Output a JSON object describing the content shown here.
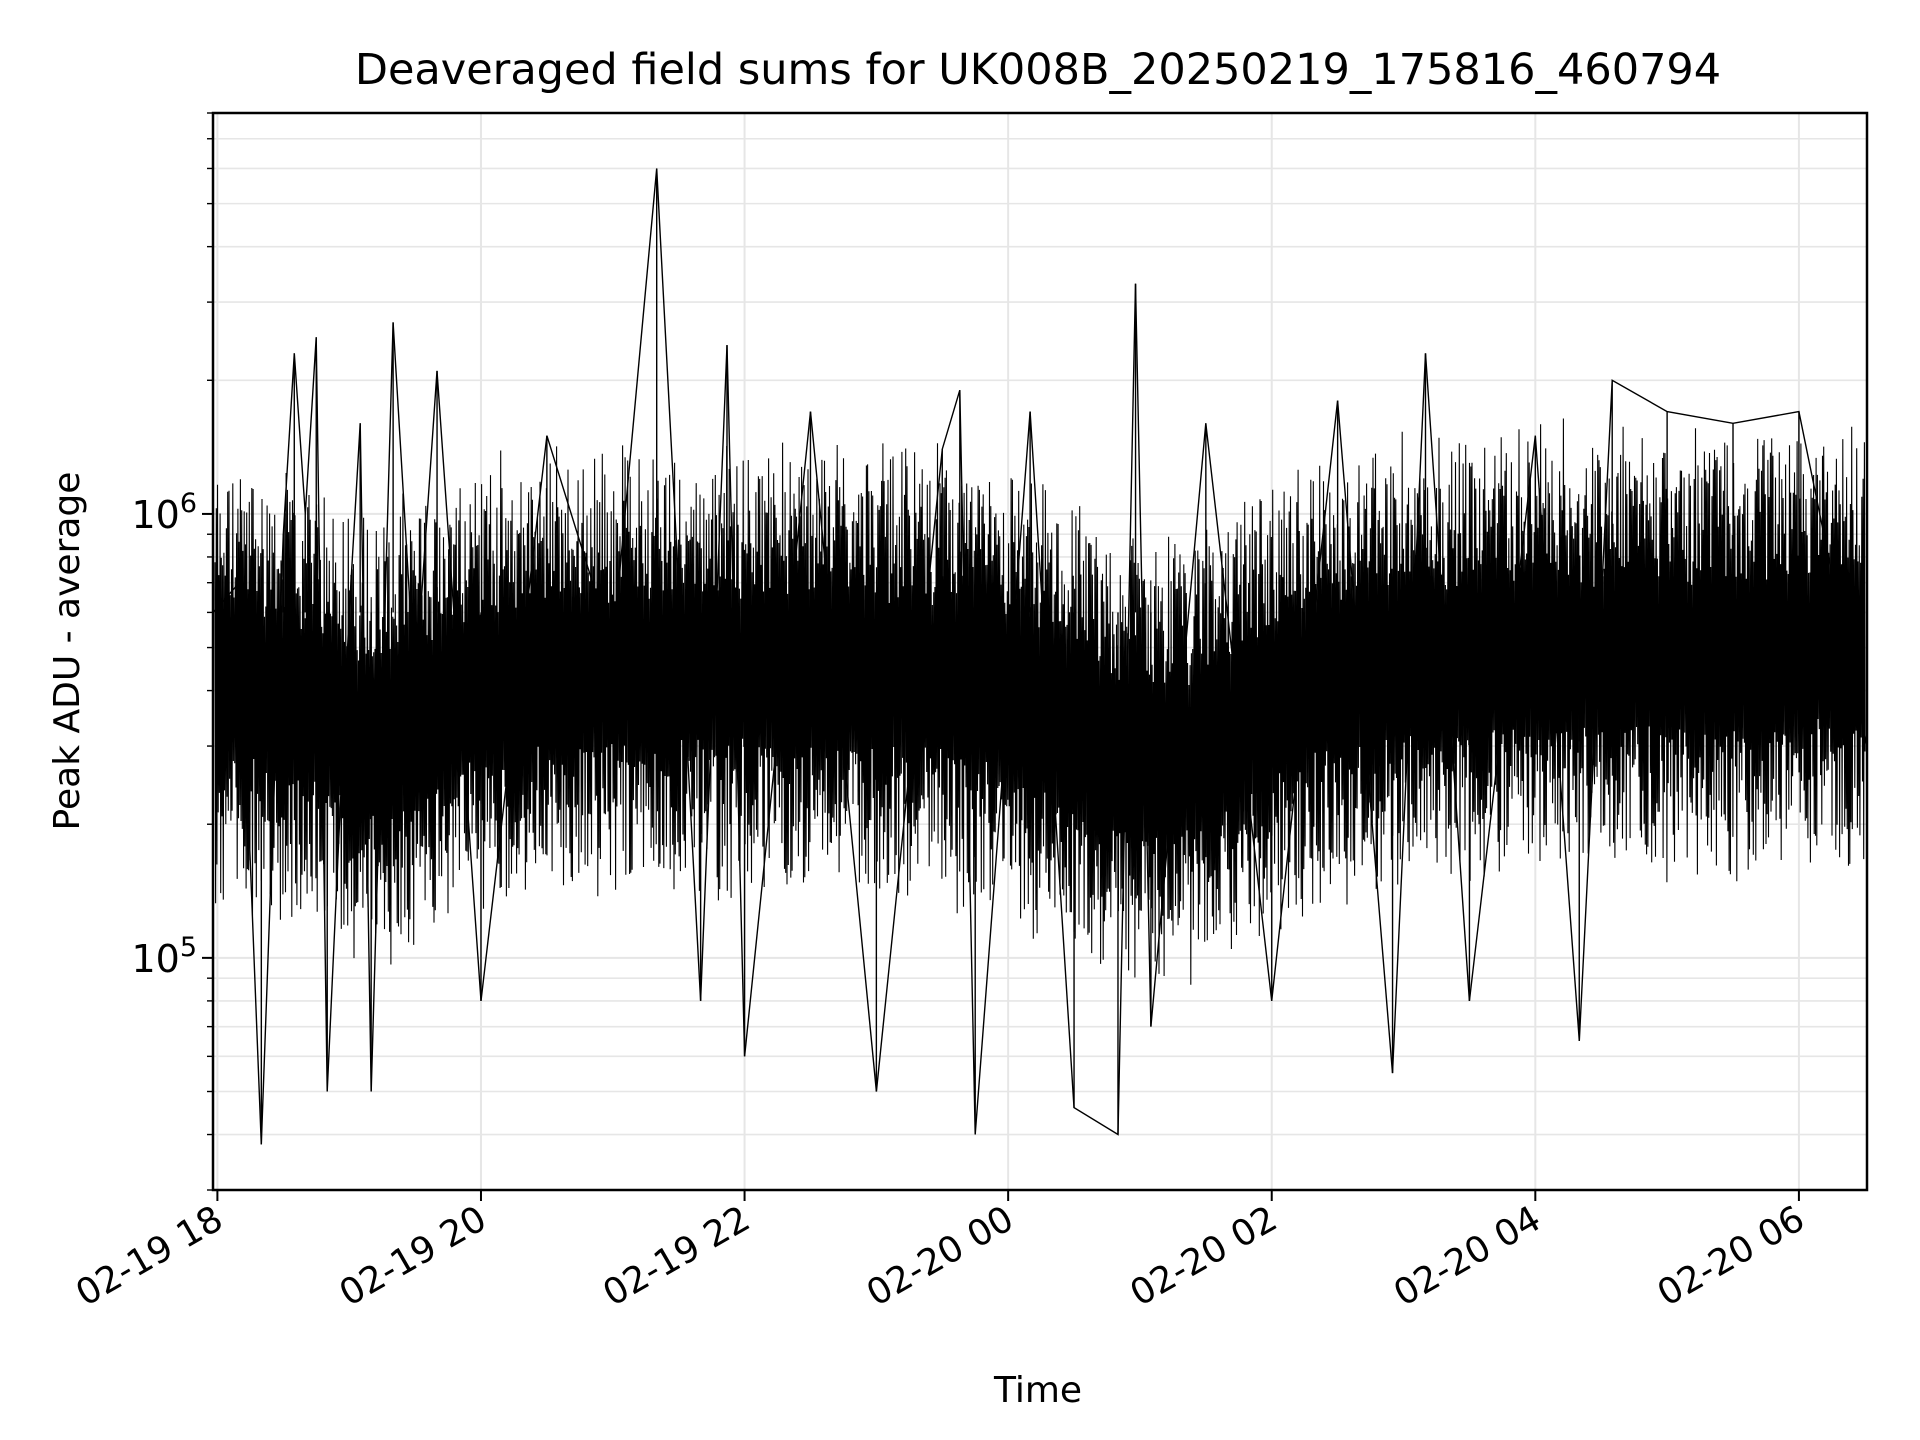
{
  "chart_data": {
    "type": "line",
    "title": "Deaveraged field sums for UK008B_20250219_175816_460794",
    "xlabel": "Time",
    "ylabel": "Peak ADU - average",
    "yscale": "log",
    "grid": true,
    "line_color": "#000000",
    "grid_color": "#e6e6e6",
    "x_ticks": [
      "02-19 18",
      "02-19 20",
      "02-19 22",
      "02-20 00",
      "02-20 02",
      "02-20 04",
      "02-20 06"
    ],
    "x_tick_times": [
      "2025-02-19 18:00",
      "2025-02-19 20:00",
      "2025-02-19 22:00",
      "2025-02-20 00:00",
      "2025-02-20 02:00",
      "2025-02-20 04:00",
      "2025-02-20 06:00"
    ],
    "xlim": [
      "2025-02-19 17:58",
      "2025-02-20 06:31"
    ],
    "y_ticks": [
      {
        "base": "10",
        "exp": "5",
        "value": 100000
      },
      {
        "base": "10",
        "exp": "6",
        "value": 1000000
      }
    ],
    "ylim": [
      30000,
      8000000
    ],
    "series": [
      {
        "x": [
          "2025-02-19 17:58",
          "2025-02-19 18:10",
          "2025-02-19 18:20",
          "2025-02-19 18:30",
          "2025-02-19 18:35",
          "2025-02-19 18:40",
          "2025-02-19 18:45",
          "2025-02-19 18:50",
          "2025-02-19 19:00",
          "2025-02-19 19:05",
          "2025-02-19 19:10",
          "2025-02-19 19:20",
          "2025-02-19 19:30",
          "2025-02-19 19:40",
          "2025-02-19 20:00",
          "2025-02-19 20:30",
          "2025-02-19 21:00",
          "2025-02-19 21:20",
          "2025-02-19 21:40",
          "2025-02-19 21:52",
          "2025-02-19 22:00",
          "2025-02-19 22:30",
          "2025-02-19 23:00",
          "2025-02-19 23:30",
          "2025-02-19 23:38",
          "2025-02-19 23:45",
          "2025-02-20 00:10",
          "2025-02-20 00:30",
          "2025-02-20 00:50",
          "2025-02-20 00:58",
          "2025-02-20 01:05",
          "2025-02-20 01:30",
          "2025-02-20 02:00",
          "2025-02-20 02:30",
          "2025-02-20 02:55",
          "2025-02-20 03:10",
          "2025-02-20 03:30",
          "2025-02-20 04:00",
          "2025-02-20 04:20",
          "2025-02-20 04:35",
          "2025-02-20 05:00",
          "2025-02-20 05:30",
          "2025-02-20 06:00",
          "2025-02-20 06:31"
        ],
        "y": [
          600000,
          700000,
          38000,
          900000,
          2300000,
          1000000,
          2500000,
          50000,
          600000,
          1600000,
          50000,
          2700000,
          400000,
          2100000,
          80000,
          1500000,
          500000,
          6000000,
          80000,
          2400000,
          60000,
          1700000,
          50000,
          1400000,
          1900000,
          40000,
          1700000,
          46000,
          40000,
          3300000,
          70000,
          1600000,
          80000,
          1800000,
          55000,
          2300000,
          80000,
          1500000,
          65000,
          2000000,
          1700000,
          1600000,
          1700000,
          300000
        ]
      }
    ]
  }
}
